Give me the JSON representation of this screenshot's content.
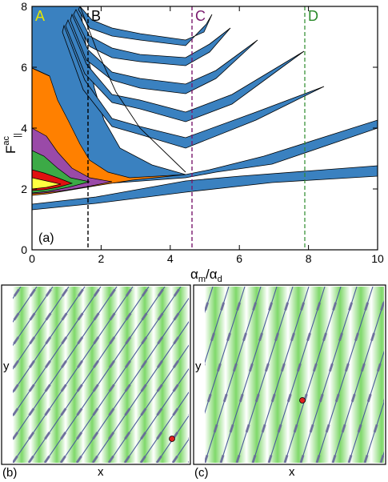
{
  "chart_data": [
    {
      "type": "area",
      "panel_label": "(a)",
      "xlabel_main": "α",
      "xlabel_sub1": "m",
      "xlabel_mid": "/α",
      "xlabel_sub2": "d",
      "ylabel_main": "F",
      "ylabel_sup": "ac",
      "ylabel_sub": "||",
      "xlim": [
        0,
        10
      ],
      "ylim": [
        0,
        8
      ],
      "x_ticks": [
        0,
        2,
        4,
        6,
        8,
        10
      ],
      "y_ticks": [
        0,
        2,
        4,
        6,
        8
      ],
      "grid": false,
      "markers": [
        {
          "label": "A",
          "x": 0.1,
          "color": "#e6e600",
          "line": false
        },
        {
          "label": "B",
          "x": 1.6,
          "color": "#000000",
          "line": true
        },
        {
          "label": "C",
          "x": 4.6,
          "color": "#7a1a6e",
          "line": true
        },
        {
          "label": "D",
          "x": 7.85,
          "color": "#2a8a2a",
          "line": true
        }
      ],
      "colors": {
        "blue": "#3a81c0",
        "orange": "#ff8000",
        "purple": "#9a4aa8",
        "green": "#3caa46",
        "red": "#e01010",
        "yellow": "#ffff40"
      }
    },
    {
      "type": "other",
      "panel_label": "(b)",
      "xlabel": "x",
      "ylabel": "y"
    },
    {
      "type": "other",
      "panel_label": "(c)",
      "xlabel": "x",
      "ylabel": "y"
    }
  ]
}
